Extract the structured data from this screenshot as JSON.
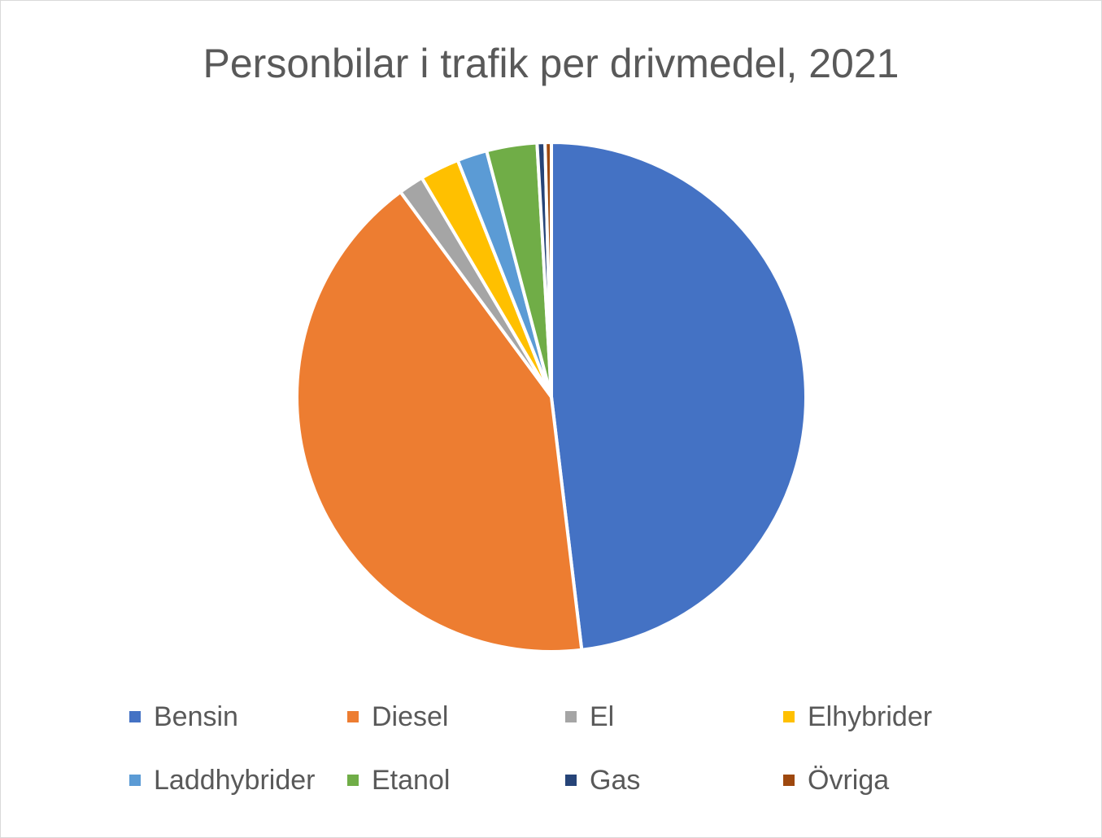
{
  "chart_data": {
    "type": "pie",
    "title": "Personbilar i trafik per drivmedel, 2021",
    "categories": [
      "Bensin",
      "Diesel",
      "El",
      "Elhybrider",
      "Laddhybrider",
      "Etanol",
      "Gas",
      "Övriga"
    ],
    "values": [
      48.1,
      41.8,
      1.6,
      2.5,
      1.9,
      3.2,
      0.5,
      0.4
    ],
    "unit": "%",
    "colors": [
      "#4472C4",
      "#ED7D31",
      "#A5A5A5",
      "#FFC000",
      "#5B9BD5",
      "#70AD47",
      "#264478",
      "#9E480E"
    ],
    "legend": "bottom",
    "start_angle_deg": 0,
    "direction": "clockwise"
  }
}
